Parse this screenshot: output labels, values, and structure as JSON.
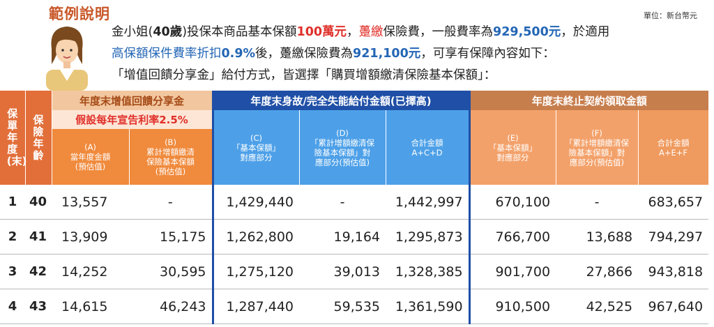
{
  "header": {
    "title": "範例說明",
    "unit": "單位：新台幣元"
  },
  "intro": {
    "l1_a": "金小姐(",
    "l1_b": "40歲",
    "l1_c": ")投保本商品基本保額",
    "l1_d": "100萬元",
    "l1_e": "，",
    "l1_f": "躉繳",
    "l1_g": "保險費，一般費率為",
    "l1_h": "929,500元",
    "l1_i": "，於適用",
    "l2_a": "高保額保件費率折扣",
    "l2_b": "0.9%",
    "l2_c": "後，躉繳保險費為",
    "l2_d": "921,100元",
    "l2_e": "，可享有保障內容如下：",
    "l3": "「增值回饋分享金」給付方式，皆選擇「購買增額繳清保險基本保額」："
  },
  "colors": {
    "title": "#c9582a",
    "red": "#e0302a",
    "blue": "#2366b5",
    "header_orange": "#e26f3a",
    "group_blue": "#1f4fa6",
    "group_brown": "#c77e4d"
  },
  "table": {
    "col_year": "保單年度(末)",
    "col_age": "保險年齡",
    "group_a": "年度末增值回饋分享金",
    "group_b": "年度末身故/完全失能給付金額(已擇高)",
    "group_c": "年度末終止契約領取金額",
    "assumption": "假設每年宣告利率2.5%",
    "sub_A_1": "(A)",
    "sub_A_2": "當年度金額",
    "sub_A_3": "(預估值)",
    "sub_B_1": "(B)",
    "sub_B_2": "累計增額繳清",
    "sub_B_3": "保險基本保額",
    "sub_B_4": "(預估值)",
    "sub_C_1": "(C)",
    "sub_C_2": "「基本保額」",
    "sub_C_3": "對應部分",
    "sub_D_1": "(D)",
    "sub_D_2": "「累計增額繳清保",
    "sub_D_3": "險基本保額」對",
    "sub_D_4": "應部分(預估值)",
    "sub_CD_1": "合計金額",
    "sub_CD_2": "A+C+D",
    "sub_E_1": "(E)",
    "sub_E_2": "「基本保額」",
    "sub_E_3": "對應部分",
    "sub_F_1": "(F)",
    "sub_F_2": "「累計增額繳清保",
    "sub_F_3": "險基本保額」對",
    "sub_F_4": "應部分(預估值)",
    "sub_EF_1": "合計金額",
    "sub_EF_2": "A+E+F",
    "rows": [
      {
        "year": "1",
        "age": "40",
        "a": "13,557",
        "b": "-",
        "c": "1,429,440",
        "d": "-",
        "acd": "1,442,997",
        "e": "670,100",
        "f": "-",
        "aef": "683,657"
      },
      {
        "year": "2",
        "age": "41",
        "a": "13,909",
        "b": "15,175",
        "c": "1,262,800",
        "d": "19,164",
        "acd": "1,295,873",
        "e": "766,700",
        "f": "13,688",
        "aef": "794,297"
      },
      {
        "year": "3",
        "age": "42",
        "a": "14,252",
        "b": "30,595",
        "c": "1,275,120",
        "d": "39,013",
        "acd": "1,328,385",
        "e": "901,700",
        "f": "27,866",
        "aef": "943,818"
      },
      {
        "year": "4",
        "age": "43",
        "a": "14,615",
        "b": "46,243",
        "c": "1,287,440",
        "d": "59,535",
        "acd": "1,361,590",
        "e": "910,500",
        "f": "42,525",
        "aef": "967,640"
      }
    ]
  }
}
